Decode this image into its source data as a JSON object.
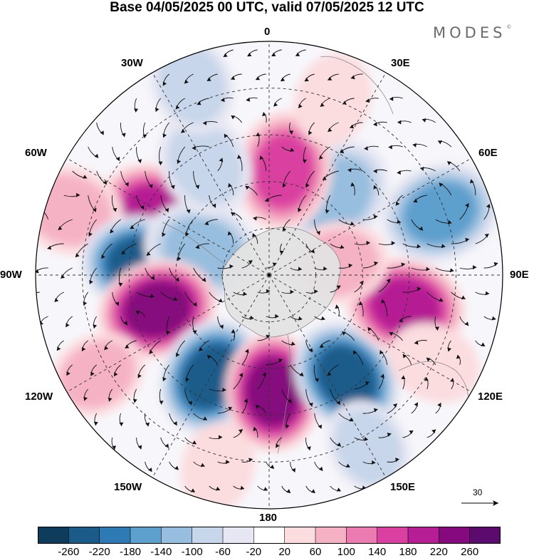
{
  "title": "Base 04/05/2025 00 UTC, valid 07/05/2025 12 UTC",
  "brand": {
    "text": "MODES",
    "mark": "©"
  },
  "map": {
    "projection": "south-polar-stereographic",
    "longitude_labels": {
      "top": "0",
      "top_right": "30E",
      "upper_right": "60E",
      "right": "90E",
      "lower_right": "120E",
      "bottom_right": "150E",
      "bottom": "180",
      "bottom_left": "150W",
      "lower_left": "120W",
      "left": "90W",
      "upper_left": "60W",
      "top_left": "30W"
    },
    "reference_vector_label": "30",
    "colors": {
      "land": "#e3e3e3",
      "coast": "#888888",
      "grid": "#333333",
      "vector": "#111111"
    }
  },
  "colorbar": {
    "colors": [
      "#0f3c5b",
      "#1b5b8a",
      "#2d7ab4",
      "#5d9fcd",
      "#97bede",
      "#c7d6ea",
      "#e7e7f3",
      "#ffffff",
      "#fbdcdf",
      "#f6b2c5",
      "#eb7bb0",
      "#da40a0",
      "#b51e94",
      "#86097d",
      "#5b0a6e"
    ],
    "tick_labels": [
      "-260",
      "-220",
      "-180",
      "-140",
      "-100",
      "-60",
      "-20",
      "20",
      "60",
      "100",
      "140",
      "180",
      "220",
      "260"
    ]
  },
  "anomalies": [
    {
      "lon": -62,
      "r": 0.55,
      "v": 190
    },
    {
      "lon": -72,
      "r": 0.9,
      "v": 90
    },
    {
      "lon": -85,
      "r": 0.55,
      "v": -240
    },
    {
      "lon": -70,
      "r": 0.3,
      "v": -120
    },
    {
      "lon": -107,
      "r": 0.5,
      "v": 240
    },
    {
      "lon": -150,
      "r": 0.5,
      "v": -255
    },
    {
      "lon": 178,
      "r": 0.5,
      "v": 235
    },
    {
      "lon": 143,
      "r": 0.55,
      "v": -255
    },
    {
      "lon": 103,
      "r": 0.6,
      "v": 210
    },
    {
      "lon": 70,
      "r": 0.78,
      "v": -140
    },
    {
      "lon": 40,
      "r": 0.45,
      "v": -110
    },
    {
      "lon": 8,
      "r": 0.45,
      "v": 140
    },
    {
      "lon": -30,
      "r": 0.55,
      "v": -90
    },
    {
      "lon": -22,
      "r": 0.88,
      "v": -70
    },
    {
      "lon": 20,
      "r": 0.8,
      "v": 50
    },
    {
      "lon": 118,
      "r": 0.8,
      "v": 50
    },
    {
      "lon": 150,
      "r": 0.85,
      "v": -60
    },
    {
      "lon": -165,
      "r": 0.85,
      "v": 40
    },
    {
      "lon": 80,
      "r": 0.3,
      "v": 70
    },
    {
      "lon": -120,
      "r": 0.85,
      "v": 60
    }
  ]
}
